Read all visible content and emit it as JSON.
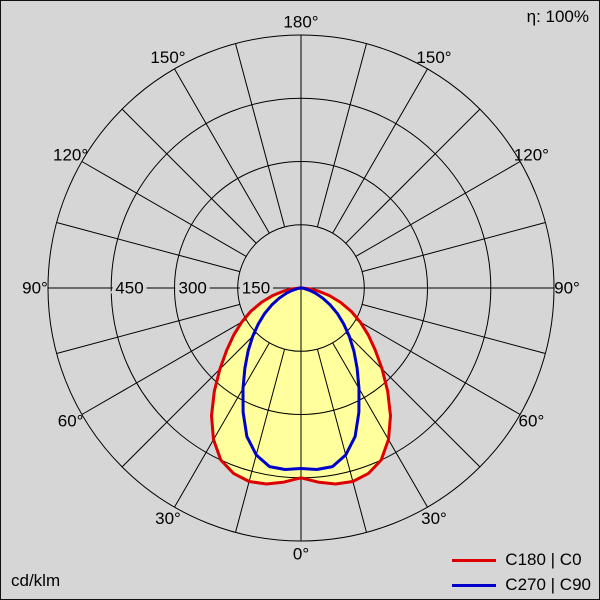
{
  "chart_data": {
    "type": "line",
    "polar": true,
    "description": "Photometric polar luminous intensity distribution diagram",
    "unit_label": "cd/klm",
    "efficiency_label": "η: 100%",
    "radial_axis": {
      "rings": [
        150,
        300,
        450,
        600
      ],
      "tick_labels": [
        "450",
        "300",
        "150"
      ],
      "max": 600
    },
    "angle_axis": {
      "labels_deg": [
        0,
        30,
        60,
        90,
        120,
        150,
        180
      ],
      "label_suffix": "°",
      "spoke_step_deg": 15,
      "zero_direction": "down"
    },
    "series": [
      {
        "name": "C180 | C0",
        "color": "#dd0000",
        "fill": "#ffff9d",
        "angles_deg": [
          -90,
          -85,
          -80,
          -75,
          -70,
          -65,
          -60,
          -55,
          -50,
          -45,
          -40,
          -35,
          -30,
          -25,
          -20,
          -15,
          -10,
          -5,
          0,
          5,
          10,
          15,
          20,
          25,
          30,
          35,
          40,
          45,
          50,
          55,
          60,
          65,
          70,
          75,
          80,
          85,
          90
        ],
        "values": [
          2,
          18,
          42,
          70,
          100,
          132,
          163,
          195,
          230,
          272,
          320,
          370,
          415,
          450,
          468,
          475,
          472,
          462,
          450,
          462,
          472,
          475,
          468,
          450,
          415,
          370,
          320,
          272,
          230,
          195,
          163,
          132,
          100,
          70,
          42,
          18,
          2
        ]
      },
      {
        "name": "C270 | C90",
        "color": "#0000cc",
        "fill": null,
        "angles_deg": [
          -90,
          -85,
          -80,
          -75,
          -70,
          -65,
          -60,
          -55,
          -50,
          -45,
          -40,
          -35,
          -30,
          -25,
          -20,
          -15,
          -10,
          -5,
          0,
          5,
          10,
          15,
          20,
          25,
          30,
          35,
          40,
          45,
          50,
          55,
          60,
          65,
          70,
          75,
          80,
          85,
          90
        ],
        "values": [
          0,
          3,
          9,
          21,
          37,
          57,
          80,
          105,
          132,
          162,
          195,
          232,
          275,
          325,
          375,
          410,
          430,
          432,
          428,
          432,
          430,
          410,
          375,
          325,
          275,
          232,
          195,
          162,
          132,
          105,
          80,
          57,
          37,
          21,
          9,
          3,
          0
        ]
      }
    ],
    "colors": {
      "background": "#d6d6d6",
      "grid": "#000000",
      "text": "#000000"
    }
  }
}
